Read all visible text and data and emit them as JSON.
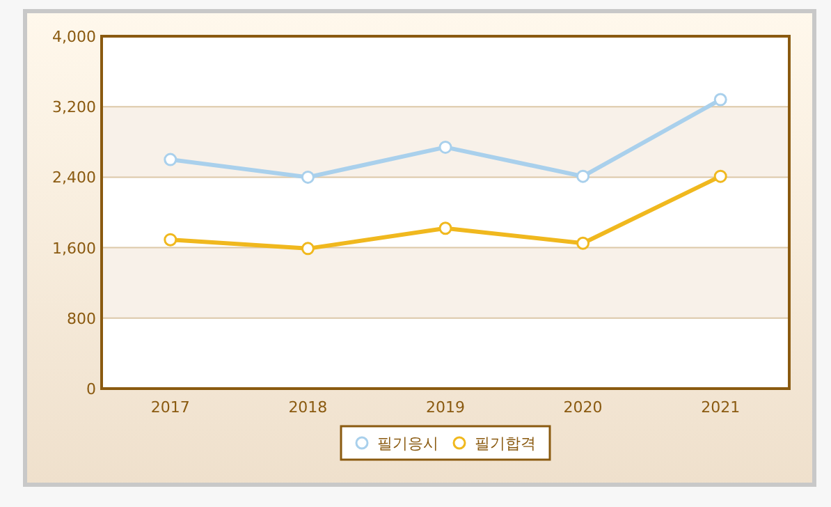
{
  "chart_data": {
    "type": "line",
    "categories": [
      "2017",
      "2018",
      "2019",
      "2020",
      "2021"
    ],
    "series": [
      {
        "name": "필기응시",
        "color": "#a9d0ec",
        "values": [
          2600,
          2400,
          2740,
          2410,
          3280
        ]
      },
      {
        "name": "필기합격",
        "color": "#f0b81e",
        "values": [
          1690,
          1590,
          1820,
          1650,
          2410
        ]
      }
    ],
    "ylim": [
      0,
      4000
    ],
    "yticks": [
      0,
      800,
      {
        "value": 1600,
        "label": "1,600"
      },
      {
        "value": 2400,
        "label": "2,400"
      },
      {
        "value": 3200,
        "label": "3,200"
      },
      {
        "value": 4000,
        "label": "4,000"
      }
    ],
    "grid": "y",
    "legend": "bottom",
    "marker": "circle",
    "bands": [
      {
        "axis": "y",
        "from": 800,
        "to": 1600,
        "color": "#f8f1e9"
      },
      {
        "axis": "y",
        "from": 2400,
        "to": 3200,
        "color": "#f8f1e9"
      }
    ]
  }
}
